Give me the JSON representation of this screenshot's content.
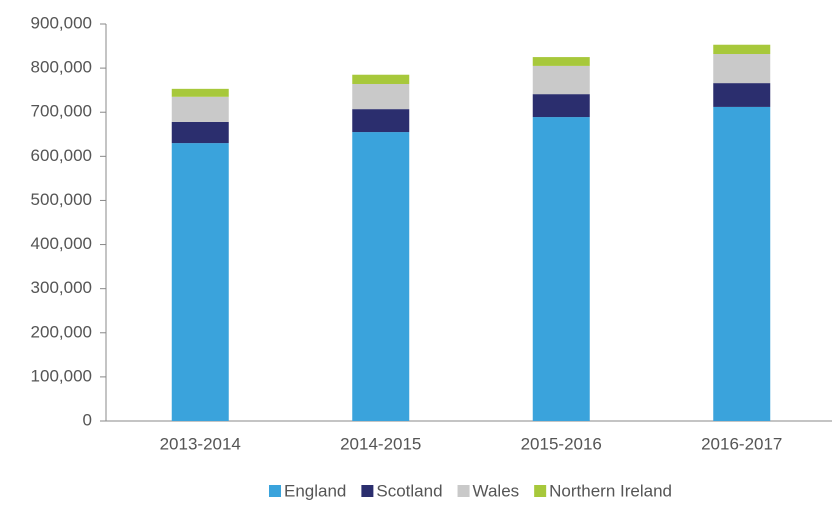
{
  "chart_data": {
    "type": "stacked_bar",
    "categories": [
      "2013-2014",
      "2014-2015",
      "2015-2016",
      "2016-2017"
    ],
    "series": [
      {
        "name": "England",
        "color": "#3aa3dc",
        "values": [
          630000,
          655000,
          689000,
          712000
        ]
      },
      {
        "name": "Scotland",
        "color": "#2b2e6e",
        "values": [
          48000,
          52000,
          52000,
          54000
        ]
      },
      {
        "name": "Wales",
        "color": "#c9c9c9",
        "values": [
          57000,
          57000,
          64000,
          66000
        ]
      },
      {
        "name": "Northern Ireland",
        "color": "#a7c83b",
        "values": [
          18000,
          21000,
          20000,
          21000
        ]
      }
    ],
    "ylim": [
      0,
      900000
    ],
    "yticks": [
      0,
      {
        "value": 100000,
        "label": "100,000"
      },
      {
        "value": 200000,
        "label": "200,000"
      },
      {
        "value": 300000,
        "label": "300,000"
      },
      {
        "value": 400000,
        "label": "400,000"
      },
      {
        "value": 500000,
        "label": "500,000"
      },
      {
        "value": 600000,
        "label": "600,000"
      },
      {
        "value": 700000,
        "label": "700,000"
      },
      {
        "value": 800000,
        "label": "800,000"
      },
      {
        "value": 900000,
        "label": "900,000"
      }
    ],
    "grid": false,
    "legend": "bottom"
  }
}
